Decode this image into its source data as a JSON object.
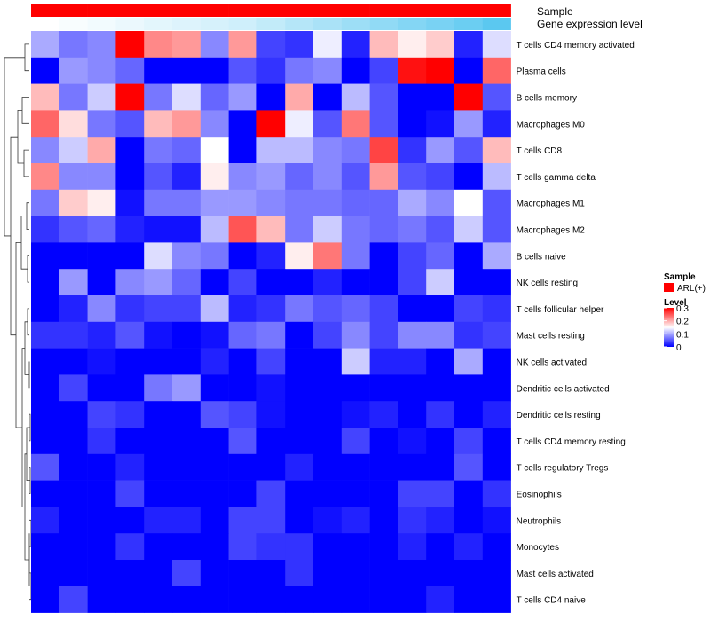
{
  "chart_data": {
    "type": "heatmap",
    "annotation_rows": [
      {
        "name": "Sample"
      },
      {
        "name": "Gene expression level"
      }
    ],
    "sample_color": "#ff0000",
    "expression_gradient": [
      "#ffffff",
      "#5bc8f0"
    ],
    "rows": [
      "T cells CD4 memory activated",
      "Plasma cells",
      "B cells memory",
      "Macrophages M0",
      "T cells CD8",
      "T cells gamma delta",
      "Macrophages M1",
      "Macrophages M2",
      "B cells naive",
      "NK cells resting",
      "T cells follicular helper",
      "Mast cells resting",
      "NK cells activated",
      "Dendritic cells activated",
      "Dendritic cells resting",
      "T cells CD4 memory resting",
      "T cells regulatory  Tregs",
      "Eosinophils",
      "Neutrophils",
      "Monocytes",
      "Mast cells activated",
      "T cells CD4 naive"
    ],
    "n_columns": 17,
    "values": [
      [
        0.1,
        0.07,
        0.08,
        0.3,
        0.22,
        0.21,
        0.08,
        0.21,
        0.04,
        0.03,
        0.14,
        0.02,
        0.19,
        0.16,
        0.18,
        0.02,
        0.13
      ],
      [
        0.0,
        0.09,
        0.08,
        0.06,
        0.0,
        0.0,
        0.0,
        0.05,
        0.03,
        0.07,
        0.08,
        0.0,
        0.04,
        0.29,
        0.3,
        0.0,
        0.24
      ],
      [
        0.19,
        0.07,
        0.12,
        0.3,
        0.07,
        0.13,
        0.06,
        0.09,
        0.0,
        0.2,
        0.0,
        0.11,
        0.05,
        0.0,
        0.0,
        0.3,
        0.05
      ],
      [
        0.24,
        0.17,
        0.07,
        0.05,
        0.19,
        0.21,
        0.08,
        0.0,
        0.3,
        0.14,
        0.05,
        0.23,
        0.05,
        0.0,
        0.01,
        0.09,
        0.02
      ],
      [
        0.08,
        0.12,
        0.2,
        0.0,
        0.07,
        0.06,
        0.15,
        0.0,
        0.11,
        0.11,
        0.08,
        0.07,
        0.26,
        0.03,
        0.09,
        0.05,
        0.19
      ],
      [
        0.22,
        0.08,
        0.08,
        0.0,
        0.05,
        0.02,
        0.16,
        0.08,
        0.09,
        0.06,
        0.08,
        0.05,
        0.21,
        0.05,
        0.04,
        0.0,
        0.11
      ],
      [
        0.07,
        0.18,
        0.16,
        0.01,
        0.07,
        0.07,
        0.09,
        0.09,
        0.08,
        0.07,
        0.07,
        0.06,
        0.06,
        0.1,
        0.08,
        0.15,
        0.05
      ],
      [
        0.03,
        0.05,
        0.06,
        0.02,
        0.01,
        0.01,
        0.11,
        0.25,
        0.19,
        0.07,
        0.12,
        0.07,
        0.06,
        0.07,
        0.05,
        0.12,
        0.05
      ],
      [
        0.0,
        0.0,
        0.0,
        0.0,
        0.13,
        0.08,
        0.07,
        0.0,
        0.02,
        0.16,
        0.23,
        0.07,
        0.0,
        0.04,
        0.06,
        0.0,
        0.1
      ],
      [
        0.0,
        0.09,
        0.0,
        0.08,
        0.09,
        0.06,
        0.0,
        0.04,
        0.0,
        0.0,
        0.02,
        0.0,
        0.0,
        0.04,
        0.12,
        0.0,
        0.0
      ],
      [
        0.0,
        0.02,
        0.08,
        0.03,
        0.04,
        0.04,
        0.11,
        0.02,
        0.03,
        0.07,
        0.05,
        0.06,
        0.04,
        0.0,
        0.0,
        0.04,
        0.03
      ],
      [
        0.03,
        0.03,
        0.02,
        0.05,
        0.01,
        0.0,
        0.01,
        0.06,
        0.07,
        0.0,
        0.04,
        0.08,
        0.04,
        0.08,
        0.08,
        0.03,
        0.04
      ],
      [
        0.0,
        0.0,
        0.01,
        0.0,
        0.0,
        0.0,
        0.02,
        0.0,
        0.04,
        0.0,
        0.0,
        0.12,
        0.02,
        0.02,
        0.0,
        0.1,
        0.0
      ],
      [
        0.0,
        0.04,
        0.0,
        0.0,
        0.07,
        0.09,
        0.0,
        0.0,
        0.01,
        0.0,
        0.0,
        0.0,
        0.0,
        0.0,
        0.0,
        0.0,
        0.0
      ],
      [
        0.0,
        0.0,
        0.04,
        0.03,
        0.0,
        0.0,
        0.05,
        0.04,
        0.01,
        0.0,
        0.0,
        0.01,
        0.02,
        0.0,
        0.03,
        0.0,
        0.02
      ],
      [
        0.0,
        0.0,
        0.03,
        0.0,
        0.0,
        0.0,
        0.0,
        0.05,
        0.0,
        0.0,
        0.0,
        0.04,
        0.0,
        0.01,
        0.0,
        0.04,
        0.0
      ],
      [
        0.05,
        0.0,
        0.0,
        0.02,
        0.0,
        0.0,
        0.0,
        0.0,
        0.0,
        0.02,
        0.0,
        0.0,
        0.0,
        0.0,
        0.0,
        0.05,
        0.0
      ],
      [
        0.0,
        0.0,
        0.0,
        0.04,
        0.0,
        0.0,
        0.0,
        0.0,
        0.04,
        0.0,
        0.0,
        0.0,
        0.0,
        0.04,
        0.04,
        0.0,
        0.03
      ],
      [
        0.02,
        0.0,
        0.0,
        0.0,
        0.02,
        0.02,
        0.0,
        0.04,
        0.04,
        0.0,
        0.01,
        0.02,
        0.0,
        0.03,
        0.02,
        0.0,
        0.01
      ],
      [
        0.0,
        0.0,
        0.0,
        0.03,
        0.0,
        0.0,
        0.0,
        0.04,
        0.03,
        0.03,
        0.0,
        0.0,
        0.0,
        0.02,
        0.0,
        0.02,
        0.0
      ],
      [
        0.0,
        0.0,
        0.0,
        0.0,
        0.0,
        0.04,
        0.0,
        0.0,
        0.0,
        0.03,
        0.0,
        0.0,
        0.0,
        0.0,
        0.0,
        0.0,
        0.0
      ],
      [
        0.0,
        0.04,
        0.0,
        0.0,
        0.0,
        0.0,
        0.0,
        0.0,
        0.0,
        0.0,
        0.0,
        0.0,
        0.0,
        0.0,
        0.02,
        0.0,
        0.0
      ]
    ],
    "expression_level": [
      0.0,
      0.04,
      0.08,
      0.12,
      0.17,
      0.21,
      0.25,
      0.29,
      0.37,
      0.45,
      0.52,
      0.6,
      0.67,
      0.75,
      0.82,
      0.9,
      1.0
    ],
    "color_scale": {
      "low": "#0000ff",
      "mid": "#ffffff",
      "high": "#ff0000",
      "range": [
        0,
        0.3
      ]
    },
    "legend": {
      "placement": "right",
      "sample": {
        "title": "Sample",
        "label": "ARL(+)"
      },
      "level": {
        "title": "Level",
        "ticks": [
          "0.3",
          "0.2",
          "0.1",
          "0"
        ],
        "tick_values": [
          0.3,
          0.2,
          0.1,
          0
        ]
      }
    },
    "dendrogram": "rows"
  }
}
